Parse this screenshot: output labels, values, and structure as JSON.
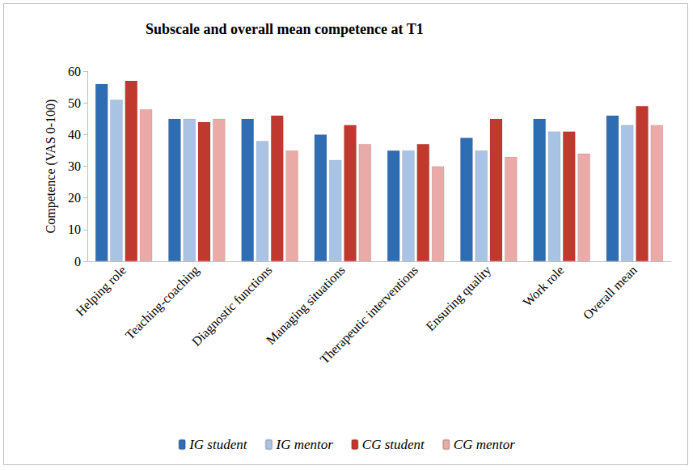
{
  "chart_data": {
    "type": "bar",
    "title": "Subscale and overall mean competence at T1",
    "y_label": "Competence (VAS 0-100)",
    "categories": [
      "Helping role",
      "Teaching-coaching",
      "Diagnostic functions",
      "Managing situations",
      "Therapeutic interventions",
      "Ensuring quality",
      "Work role",
      "Overall mean"
    ],
    "series": [
      {
        "name": "IG student",
        "color": "#2f6db3",
        "values": [
          56,
          45,
          45,
          40,
          35,
          39,
          45,
          46
        ]
      },
      {
        "name": "IG mentor",
        "color": "#a8c3e3",
        "values": [
          51,
          45,
          38,
          32,
          35,
          35,
          41,
          43
        ]
      },
      {
        "name": "CG student",
        "color": "#c0392f",
        "values": [
          57,
          44,
          46,
          43,
          37,
          45,
          41,
          49
        ]
      },
      {
        "name": "CG mentor",
        "color": "#e9aaa8",
        "values": [
          48,
          45,
          35,
          37,
          30,
          33,
          34,
          43
        ]
      }
    ],
    "ylim": [
      0,
      60
    ],
    "yticks": [
      0,
      10,
      20,
      30,
      40,
      50,
      60
    ],
    "grid": false,
    "legend": "bottom"
  }
}
